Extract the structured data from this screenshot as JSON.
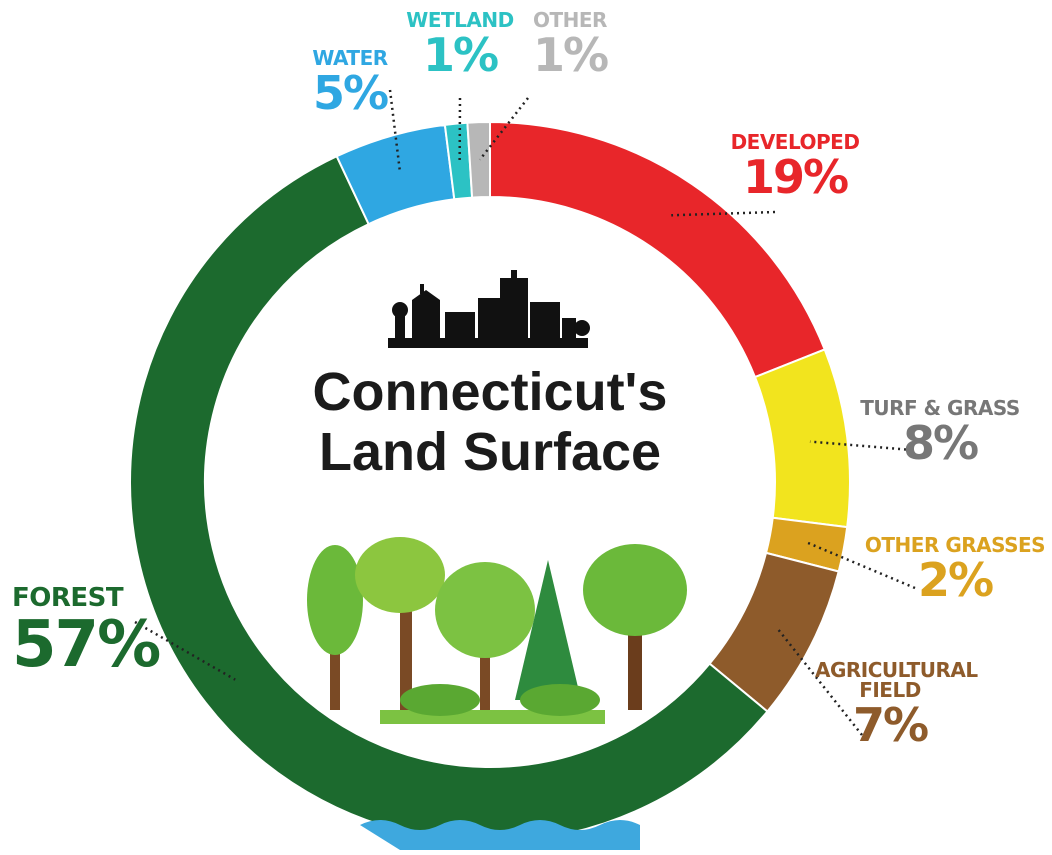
{
  "chart_data": {
    "type": "donut",
    "title": "Connecticut's Land Surface",
    "categories": [
      "DEVELOPED",
      "TURF & GRASS",
      "OTHER GRASSES",
      "AGRICULTURAL FIELD",
      "FOREST",
      "WATER",
      "WETLAND",
      "OTHER"
    ],
    "values": [
      19,
      8,
      2,
      7,
      57,
      5,
      1,
      1
    ],
    "value_labels": [
      "19%",
      "8%",
      "2%",
      "7%",
      "57%",
      "5%",
      "1%",
      "1%"
    ],
    "colors": [
      "#e8262a",
      "#f2e41e",
      "#dba21f",
      "#8e5b2b",
      "#1c6a2e",
      "#2fa7e2",
      "#2cc2c4",
      "#b7b7b7"
    ]
  }
}
